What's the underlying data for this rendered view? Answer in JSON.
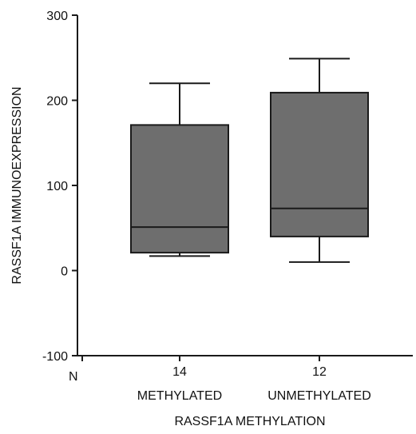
{
  "chart_data": {
    "type": "box",
    "ylabel": "RASSF1A IMMUNOEXPRESSION",
    "xlabel": "RASSF1A METHYLATION",
    "ylim": [
      -100,
      300
    ],
    "yticks": [
      -100,
      0,
      100,
      200,
      300
    ],
    "n_prefix": "N",
    "categories": [
      {
        "label": "METHYLATED",
        "n": "14"
      },
      {
        "label": "UNMETHYLATED",
        "n": "12"
      }
    ],
    "boxes": [
      {
        "min": 17,
        "q1": 21,
        "median": 51,
        "q3": 171,
        "max": 220
      },
      {
        "min": 10,
        "q1": 40,
        "median": 73,
        "q3": 209,
        "max": 249
      }
    ],
    "grid": false,
    "colors": {
      "box_fill": "#6e6e6e",
      "line": "#1a1a1a",
      "axis": "#1a1a1a"
    }
  }
}
